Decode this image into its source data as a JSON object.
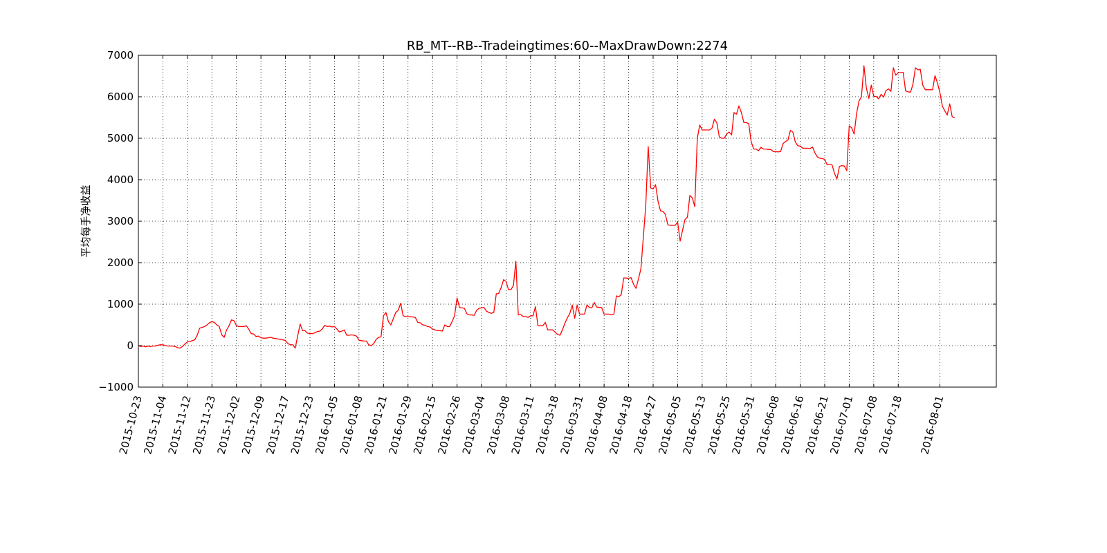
{
  "chart_data": {
    "type": "line",
    "title": "RB_MT--RB--Tradeingtimes:60--MaxDrawDown:2274",
    "xlabel": "",
    "ylabel": "平均每手净收益",
    "ylim": [
      -1000,
      7000
    ],
    "yticks": [
      -1000,
      0,
      1000,
      2000,
      3000,
      4000,
      5000,
      6000,
      7000
    ],
    "ytick_labels": [
      "−1000",
      "0",
      "1000",
      "2000",
      "3000",
      "4000",
      "5000",
      "6000",
      "7000"
    ],
    "x_tick_labels": [
      "2015-10-23",
      "2015-11-04",
      "2015-11-12",
      "2015-11-23",
      "2015-12-02",
      "2015-12-09",
      "2015-12-17",
      "2015-12-23",
      "2016-01-05",
      "2016-01-08",
      "2016-01-21",
      "2016-01-29",
      "2016-02-15",
      "2016-02-26",
      "2016-03-04",
      "2016-03-08",
      "2016-03-11",
      "2016-03-18",
      "2016-03-31",
      "2016-04-08",
      "2016-04-18",
      "2016-04-27",
      "2016-05-05",
      "2016-05-13",
      "2016-05-25",
      "2016-05-31",
      "2016-06-08",
      "2016-06-16",
      "2016-06-21",
      "2016-07-01",
      "2016-07-08",
      "2016-07-18",
      "2016-08-01"
    ],
    "x_tick_index": [
      0,
      10,
      20,
      30,
      40,
      50,
      60,
      70,
      80,
      90,
      100,
      110,
      120,
      130,
      140,
      150,
      160,
      170,
      180,
      190,
      200,
      210,
      220,
      230,
      240,
      250,
      260,
      270,
      280,
      290,
      300,
      310,
      327
    ],
    "x_index_max": 350,
    "line_color": "#ff0000",
    "grid": true,
    "series": [
      {
        "values": [
          0,
          -20,
          -10,
          -30,
          -10,
          -20,
          -10,
          -10,
          10,
          20,
          20,
          0,
          -10,
          -10,
          -10,
          -20,
          -50,
          -60,
          -20,
          40,
          90,
          100,
          120,
          140,
          250,
          420,
          440,
          460,
          500,
          550,
          580,
          560,
          500,
          460,
          260,
          200,
          380,
          480,
          620,
          600,
          480,
          460,
          460,
          460,
          480,
          400,
          290,
          280,
          220,
          230,
          190,
          180,
          180,
          190,
          200,
          180,
          170,
          160,
          150,
          140,
          120,
          50,
          20,
          20,
          -60,
          240,
          520,
          360,
          360,
          300,
          290,
          290,
          310,
          340,
          350,
          400,
          490,
          460,
          470,
          450,
          460,
          400,
          330,
          350,
          380,
          250,
          250,
          260,
          250,
          230,
          130,
          120,
          110,
          110,
          20,
          0,
          50,
          150,
          200,
          210,
          720,
          800,
          580,
          500,
          650,
          800,
          850,
          1020,
          720,
          700,
          700,
          700,
          690,
          680,
          560,
          550,
          500,
          490,
          460,
          450,
          400,
          380,
          360,
          360,
          350,
          500,
          460,
          460,
          580,
          720,
          1150,
          920,
          910,
          900,
          770,
          740,
          740,
          730,
          850,
          900,
          910,
          920,
          830,
          800,
          780,
          800,
          1250,
          1260,
          1400,
          1590,
          1550,
          1350,
          1350,
          1450,
          2040,
          740,
          750,
          700,
          700,
          680,
          720,
          720,
          940,
          480,
          480,
          480,
          560,
          380,
          380,
          380,
          330,
          270,
          250,
          380,
          540,
          670,
          770,
          980,
          660,
          980,
          760,
          760,
          760,
          980,
          920,
          910,
          1040,
          930,
          920,
          920,
          760,
          760,
          760,
          740,
          760,
          1200,
          1180,
          1230,
          1630,
          1630,
          1620,
          1640,
          1480,
          1380,
          1600,
          1850,
          2600,
          3400,
          4800,
          3800,
          3780,
          3880,
          3480,
          3250,
          3240,
          3160,
          2910,
          2900,
          2900,
          2900,
          2980,
          2520,
          2780,
          3040,
          3100,
          3620,
          3560,
          3350,
          4990,
          5320,
          5200,
          5200,
          5200,
          5200,
          5240,
          5460,
          5370,
          5030,
          5000,
          5000,
          5100,
          5150,
          5080,
          5620,
          5580,
          5780,
          5620,
          5380,
          5380,
          5350,
          4920,
          4740,
          4740,
          4700,
          4780,
          4740,
          4740,
          4730,
          4730,
          4680,
          4680,
          4670,
          4680,
          4870,
          4920,
          4960,
          5190,
          5150,
          4910,
          4820,
          4810,
          4760,
          4760,
          4760,
          4750,
          4790,
          4650,
          4550,
          4520,
          4510,
          4490,
          4360,
          4360,
          4360,
          4150,
          4020,
          4320,
          4340,
          4330,
          4220,
          5300,
          5250,
          5100,
          5600,
          5900,
          6000,
          6750,
          6210,
          5960,
          6280,
          6010,
          6010,
          5950,
          6060,
          5990,
          6150,
          6190,
          6130,
          6700,
          6520,
          6580,
          6580,
          6590,
          6140,
          6120,
          6110,
          6300,
          6700,
          6650,
          6660,
          6280,
          6170,
          6170,
          6170,
          6170,
          6510,
          6330,
          6100,
          5770,
          5660,
          5560,
          5830,
          5520,
          5490
        ]
      }
    ]
  }
}
